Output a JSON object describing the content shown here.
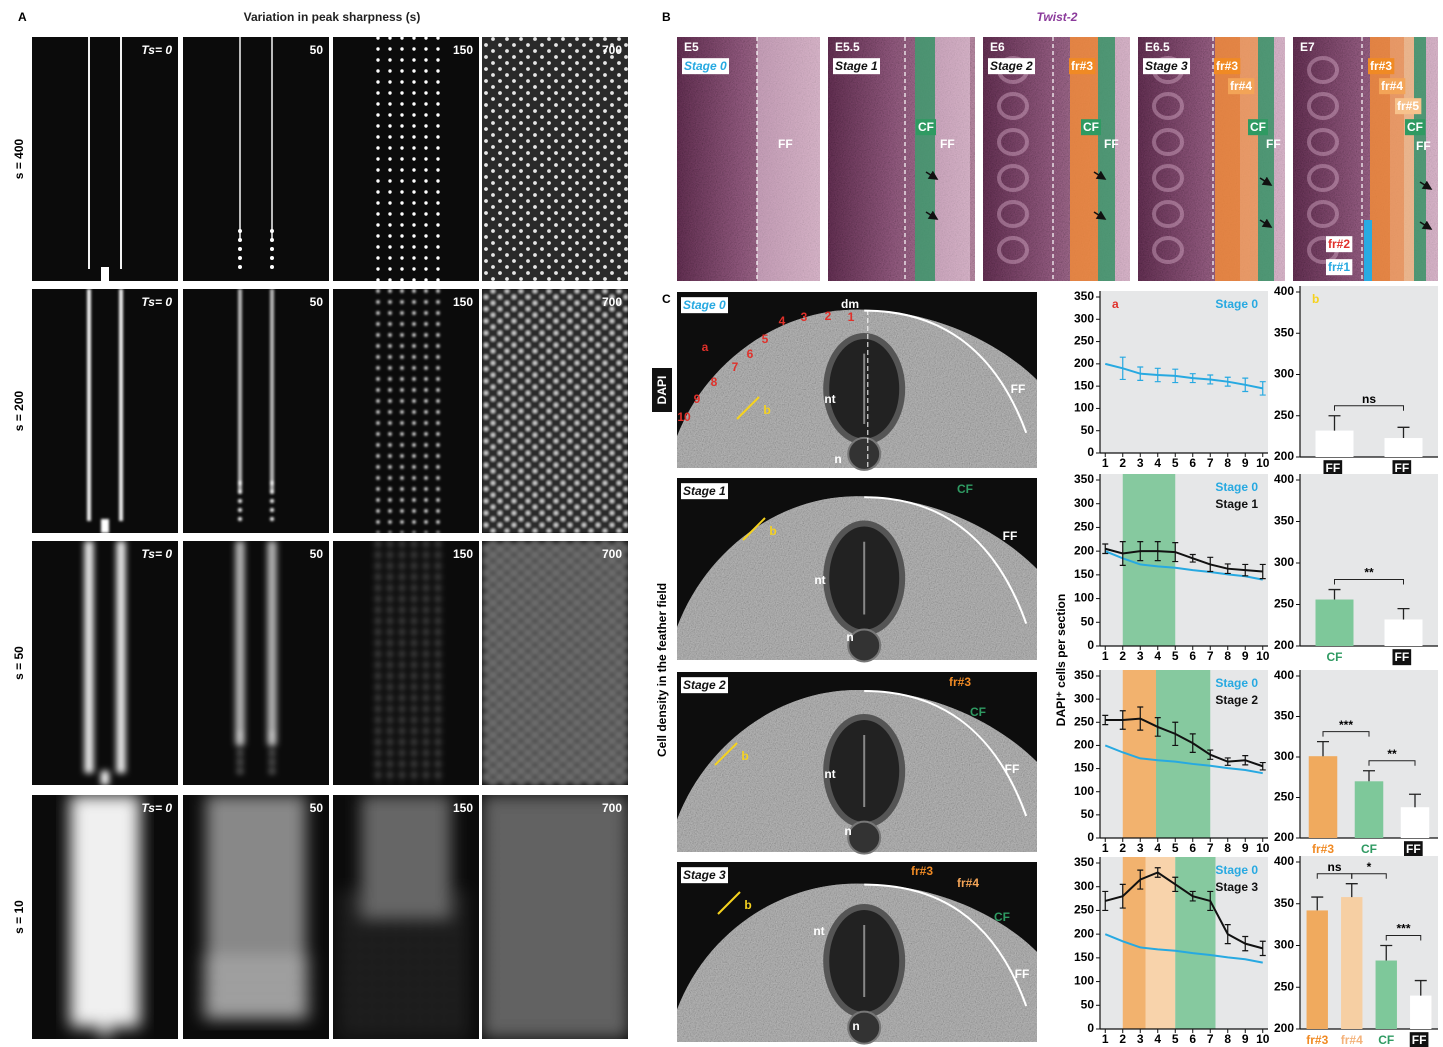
{
  "panel_a": {
    "label": "A",
    "title": "Variation in peak sharpness (s)",
    "rows": [
      "s = 400",
      "s = 200",
      "s = 50",
      "s = 10"
    ],
    "columns": [
      "Ts= 0",
      "50",
      "150",
      "700"
    ]
  },
  "panel_b": {
    "label": "B",
    "title": "Twist-2",
    "tiles": [
      {
        "day": "E5",
        "stage": "Stage 0",
        "stage_color": "#27a9e1",
        "regions": [
          {
            "text": "FF",
            "color": "#ffffff"
          }
        ]
      },
      {
        "day": "E5.5",
        "stage": "Stage 1",
        "stage_color": "#111111",
        "regions": [
          {
            "text": "CF",
            "color": "#2f9a62"
          },
          {
            "text": "FF",
            "color": "#ffffff"
          }
        ]
      },
      {
        "day": "E6",
        "stage": "Stage 2",
        "stage_color": "#111111",
        "regions": [
          {
            "text": "fr#3",
            "color": "#f08a24"
          },
          {
            "text": "CF",
            "color": "#2f9a62"
          },
          {
            "text": "FF",
            "color": "#ffffff"
          }
        ]
      },
      {
        "day": "E6.5",
        "stage": "Stage 3",
        "stage_color": "#111111",
        "regions": [
          {
            "text": "fr#3",
            "color": "#f08a24"
          },
          {
            "text": "fr#4",
            "color": "#f3a457"
          },
          {
            "text": "CF",
            "color": "#2f9a62"
          },
          {
            "text": "FF",
            "color": "#ffffff"
          }
        ]
      },
      {
        "day": "E7",
        "regions": [
          {
            "text": "fr#3",
            "color": "#f08a24"
          },
          {
            "text": "fr#4",
            "color": "#f3a457"
          },
          {
            "text": "fr#5",
            "color": "#f7c28c"
          },
          {
            "text": "CF",
            "color": "#2f9a62"
          },
          {
            "text": "FF",
            "color": "#ffffff"
          },
          {
            "text": "fr#2",
            "color": "#e0302a"
          },
          {
            "text": "fr#1",
            "color": "#27a9e1"
          }
        ]
      }
    ]
  },
  "panel_c": {
    "label": "C",
    "ylabel": "Cell density in the feather field",
    "stain": "DAPI",
    "chart_ylabel": "DAPI⁺ cells per section",
    "sections": [
      {
        "stage": "Stage 0",
        "stage_color": "#27a9e1",
        "labels": [
          {
            "text": "dm",
            "color": "#ffffff"
          },
          {
            "text": "a",
            "color": "#e0302a"
          },
          {
            "text": "b",
            "color": "#f5d21f"
          },
          {
            "text": "nt",
            "color": "#ffffff"
          },
          {
            "text": "n",
            "color": "#ffffff"
          },
          {
            "text": "FF",
            "color": "#ffffff"
          },
          {
            "text": "1",
            "color": "#e0302a"
          },
          {
            "text": "2",
            "color": "#e0302a"
          },
          {
            "text": "3",
            "color": "#e0302a"
          },
          {
            "text": "4",
            "color": "#e0302a"
          },
          {
            "text": "5",
            "color": "#e0302a"
          },
          {
            "text": "6",
            "color": "#e0302a"
          },
          {
            "text": "7",
            "color": "#e0302a"
          },
          {
            "text": "8",
            "color": "#e0302a"
          },
          {
            "text": "9",
            "color": "#e0302a"
          },
          {
            "text": "10",
            "color": "#e0302a"
          }
        ]
      },
      {
        "stage": "Stage 1",
        "stage_color": "#111111",
        "labels": [
          {
            "text": "CF",
            "color": "#2f9a62"
          },
          {
            "text": "FF",
            "color": "#ffffff"
          },
          {
            "text": "b",
            "color": "#f5d21f"
          },
          {
            "text": "nt",
            "color": "#ffffff"
          },
          {
            "text": "n",
            "color": "#ffffff"
          }
        ]
      },
      {
        "stage": "Stage 2",
        "stage_color": "#111111",
        "labels": [
          {
            "text": "fr#3",
            "color": "#f08a24"
          },
          {
            "text": "CF",
            "color": "#2f9a62"
          },
          {
            "text": "FF",
            "color": "#ffffff"
          },
          {
            "text": "b",
            "color": "#f5d21f"
          },
          {
            "text": "nt",
            "color": "#ffffff"
          },
          {
            "text": "n",
            "color": "#ffffff"
          }
        ]
      },
      {
        "stage": "Stage 3",
        "stage_color": "#111111",
        "labels": [
          {
            "text": "fr#3",
            "color": "#f08a24"
          },
          {
            "text": "fr#4",
            "color": "#f3a457"
          },
          {
            "text": "CF",
            "color": "#2f9a62"
          },
          {
            "text": "FF",
            "color": "#ffffff"
          },
          {
            "text": "b",
            "color": "#f5d21f"
          },
          {
            "text": "nt",
            "color": "#ffffff"
          },
          {
            "text": "n",
            "color": "#ffffff"
          }
        ]
      }
    ]
  },
  "chart_data": [
    {
      "type": "line",
      "label": "a",
      "label_color": "#e0302a",
      "x": [
        1,
        2,
        3,
        4,
        5,
        6,
        7,
        8,
        9,
        10
      ],
      "xlim": [
        0.7,
        10.3
      ],
      "xticks": [
        1,
        2,
        3,
        4,
        5,
        6,
        7,
        8,
        9,
        10
      ],
      "ylim": [
        0,
        350
      ],
      "yticks": [
        0,
        50,
        100,
        150,
        200,
        250,
        300,
        350
      ],
      "series": [
        {
          "name": "Stage 0",
          "color": "#27a9e1",
          "values": [
            200,
            190,
            178,
            175,
            173,
            168,
            165,
            160,
            153,
            145
          ],
          "errors": [
            null,
            25,
            15,
            15,
            15,
            10,
            10,
            10,
            15,
            15
          ]
        }
      ]
    },
    {
      "type": "line",
      "x": [
        1,
        2,
        3,
        4,
        5,
        6,
        7,
        8,
        9,
        10
      ],
      "xlim": [
        0.7,
        10.3
      ],
      "xticks": [
        1,
        2,
        3,
        4,
        5,
        6,
        7,
        8,
        9,
        10
      ],
      "ylim": [
        0,
        350
      ],
      "yticks": [
        0,
        50,
        100,
        150,
        200,
        250,
        300,
        350
      ],
      "bands": [
        {
          "from": 2,
          "to": 5,
          "color": "#86c99f"
        }
      ],
      "series": [
        {
          "name": "Stage 0",
          "color": "#27a9e1",
          "values": [
            200,
            185,
            172,
            168,
            165,
            160,
            156,
            151,
            147,
            140
          ]
        },
        {
          "name": "Stage 1",
          "color": "#111111",
          "values": [
            205,
            195,
            200,
            200,
            198,
            185,
            172,
            163,
            160,
            157
          ],
          "errors": [
            10,
            25,
            20,
            20,
            20,
            8,
            15,
            10,
            12,
            15
          ]
        }
      ]
    },
    {
      "type": "line",
      "x": [
        1,
        2,
        3,
        4,
        5,
        6,
        7,
        8,
        9,
        10
      ],
      "xlim": [
        0.7,
        10.3
      ],
      "xticks": [
        1,
        2,
        3,
        4,
        5,
        6,
        7,
        8,
        9,
        10
      ],
      "ylim": [
        0,
        350
      ],
      "yticks": [
        0,
        50,
        100,
        150,
        200,
        250,
        300,
        350
      ],
      "bands": [
        {
          "from": 2,
          "to": 3.9,
          "color": "#f2b26e"
        },
        {
          "from": 3.9,
          "to": 7,
          "color": "#86c99f"
        }
      ],
      "series": [
        {
          "name": "Stage 0",
          "color": "#27a9e1",
          "values": [
            200,
            185,
            172,
            168,
            165,
            160,
            156,
            151,
            147,
            140
          ]
        },
        {
          "name": "Stage 2",
          "color": "#111111",
          "values": [
            255,
            255,
            258,
            240,
            225,
            205,
            180,
            165,
            168,
            155
          ],
          "errors": [
            10,
            20,
            25,
            20,
            25,
            20,
            10,
            8,
            10,
            8
          ]
        }
      ]
    },
    {
      "type": "line",
      "x": [
        1,
        2,
        3,
        4,
        5,
        6,
        7,
        8,
        9,
        10
      ],
      "xlim": [
        0.7,
        10.3
      ],
      "xticks": [
        1,
        2,
        3,
        4,
        5,
        6,
        7,
        8,
        9,
        10
      ],
      "ylim": [
        0,
        350
      ],
      "yticks": [
        0,
        50,
        100,
        150,
        200,
        250,
        300,
        350
      ],
      "bands": [
        {
          "from": 2,
          "to": 3.3,
          "color": "#f2b26e"
        },
        {
          "from": 3.3,
          "to": 5,
          "color": "#f8d3ab"
        },
        {
          "from": 5,
          "to": 7.3,
          "color": "#86c99f"
        }
      ],
      "series": [
        {
          "name": "Stage 0",
          "color": "#27a9e1",
          "values": [
            200,
            185,
            172,
            168,
            165,
            160,
            156,
            151,
            147,
            140
          ]
        },
        {
          "name": "Stage 3",
          "color": "#111111",
          "values": [
            270,
            280,
            315,
            330,
            305,
            280,
            270,
            200,
            180,
            170
          ],
          "errors": [
            20,
            25,
            20,
            10,
            15,
            10,
            20,
            20,
            15,
            15
          ]
        }
      ]
    },
    {
      "type": "bar",
      "label": "b",
      "label_color": "#f5d21f",
      "categories": [
        "FF",
        "FF"
      ],
      "values": [
        232,
        223
      ],
      "errors": [
        18,
        13
      ],
      "colors": [
        "#ffffff",
        "#ffffff"
      ],
      "label_colors": [
        "#ffffff",
        "#ffffff"
      ],
      "ylim": [
        200,
        400
      ],
      "yticks": [
        200,
        250,
        300,
        350,
        400
      ],
      "significance": [
        "ns"
      ]
    },
    {
      "type": "bar",
      "categories": [
        "CF",
        "FF"
      ],
      "values": [
        256,
        232
      ],
      "errors": [
        12,
        13
      ],
      "colors": [
        "#7ec89a",
        "#ffffff"
      ],
      "label_colors": [
        "#2f9a62",
        "#ffffff"
      ],
      "ylim": [
        200,
        400
      ],
      "yticks": [
        200,
        250,
        300,
        350,
        400
      ],
      "significance": [
        "**"
      ]
    },
    {
      "type": "bar",
      "categories": [
        "fr#3",
        "CF",
        "FF"
      ],
      "values": [
        301,
        270,
        238
      ],
      "errors": [
        18,
        13,
        16
      ],
      "colors": [
        "#f0aa5e",
        "#7ec89a",
        "#ffffff"
      ],
      "label_colors": [
        "#f08a24",
        "#2f9a62",
        "#ffffff"
      ],
      "ylim": [
        200,
        400
      ],
      "yticks": [
        200,
        250,
        300,
        350,
        400
      ],
      "significance": [
        "***",
        "**"
      ]
    },
    {
      "type": "bar",
      "categories": [
        "fr#3",
        "fr#4",
        "CF",
        "FF"
      ],
      "values": [
        342,
        358,
        282,
        240
      ],
      "errors": [
        16,
        16,
        18,
        18
      ],
      "colors": [
        "#f0aa5e",
        "#f6cfa3",
        "#7ec89a",
        "#ffffff"
      ],
      "label_colors": [
        "#f08a24",
        "#f4b27a",
        "#2f9a62",
        "#ffffff"
      ],
      "ylim": [
        200,
        400
      ],
      "yticks": [
        200,
        250,
        300,
        350,
        400
      ],
      "significance": [
        "ns",
        "*",
        "***"
      ]
    }
  ]
}
